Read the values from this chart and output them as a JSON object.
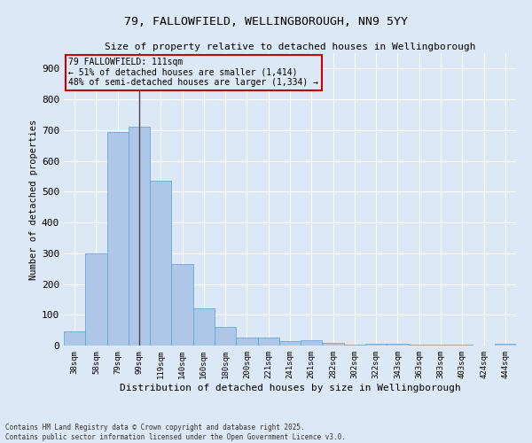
{
  "title_line1": "79, FALLOWFIELD, WELLINGBOROUGH, NN9 5YY",
  "title_line2": "Size of property relative to detached houses in Wellingborough",
  "xlabel": "Distribution of detached houses by size in Wellingborough",
  "ylabel": "Number of detached properties",
  "categories": [
    "38sqm",
    "58sqm",
    "79sqm",
    "99sqm",
    "119sqm",
    "140sqm",
    "160sqm",
    "180sqm",
    "200sqm",
    "221sqm",
    "241sqm",
    "261sqm",
    "282sqm",
    "302sqm",
    "322sqm",
    "343sqm",
    "363sqm",
    "383sqm",
    "403sqm",
    "424sqm",
    "444sqm"
  ],
  "values": [
    45,
    300,
    695,
    710,
    535,
    265,
    120,
    60,
    25,
    25,
    15,
    18,
    8,
    3,
    7,
    6,
    3,
    3,
    2,
    1,
    7
  ],
  "bar_color": "#aec6e8",
  "bar_edge_color": "#5a9fd4",
  "annotation_text": "79 FALLOWFIELD: 111sqm\n← 51% of detached houses are smaller (1,414)\n48% of semi-detached houses are larger (1,334) →",
  "annotation_bar_index": 3,
  "vline_color": "#444444",
  "annotation_box_color": "#cc0000",
  "ylim": [
    0,
    950
  ],
  "yticks": [
    0,
    100,
    200,
    300,
    400,
    500,
    600,
    700,
    800,
    900
  ],
  "bg_color": "#dce8f5",
  "grid_color": "#ffffff",
  "footer_line1": "Contains HM Land Registry data © Crown copyright and database right 2025.",
  "footer_line2": "Contains public sector information licensed under the Open Government Licence v3.0."
}
